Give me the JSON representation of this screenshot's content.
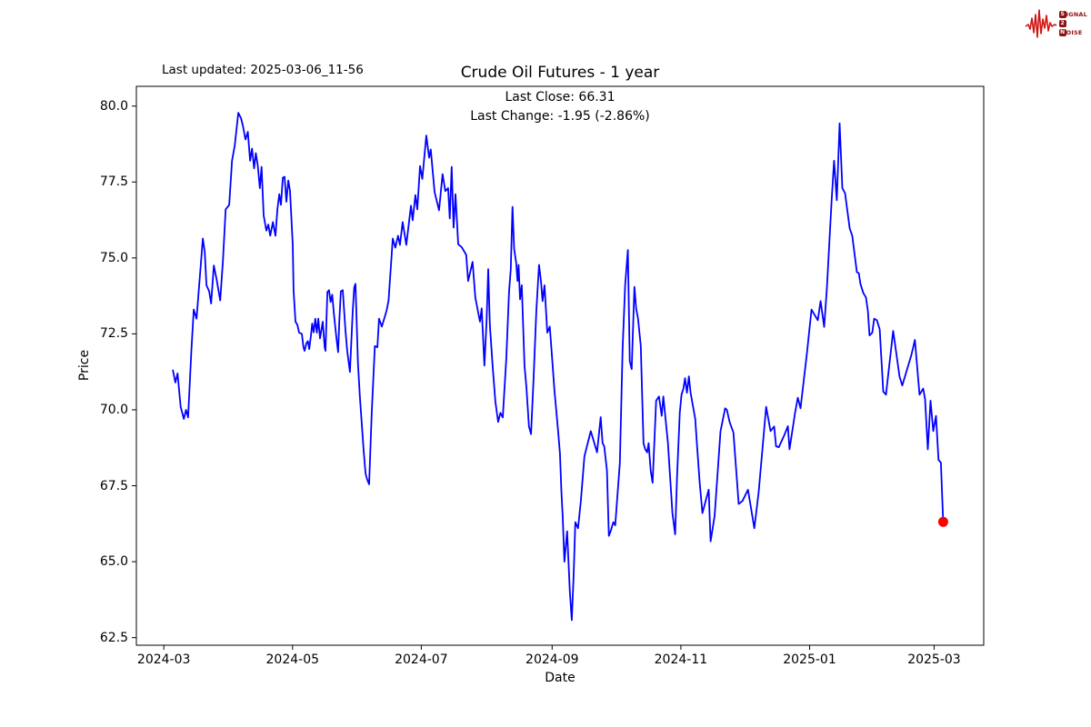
{
  "header": {
    "last_updated": "Last updated: 2025-03-06_11-56"
  },
  "logo": {
    "line1_boxed": "S",
    "line1_rest": "IGNAL",
    "line2_boxed": "2",
    "line2_rest": "",
    "line3_boxed": "N",
    "line3_rest": "OISE",
    "waveform_color": "#cf1511",
    "box_color": "#8c1210",
    "text_color": "#8c1210"
  },
  "chart_data": {
    "type": "line",
    "title": "Crude Oil Futures - 1 year",
    "annotation_line1": "Last Close: 66.31",
    "annotation_line2": "Last Change: -1.95 (-2.86%)",
    "last_close": 66.31,
    "last_change": -1.95,
    "last_change_pct": -2.86,
    "xlabel": "Date",
    "ylabel": "Price",
    "grid": false,
    "legend": "none",
    "line_color": "#0000ff",
    "marker_color": "#ff0000",
    "x_unit": "days since 2024-03-01",
    "xlim": [
      -13,
      388.5
    ],
    "ylim": [
      62.25,
      80.65
    ],
    "y_ticks": [
      62.5,
      65.0,
      67.5,
      70.0,
      72.5,
      75.0,
      77.5,
      80.0
    ],
    "x_ticks": [
      {
        "day": 0,
        "label": "2024-03"
      },
      {
        "day": 61,
        "label": "2024-05"
      },
      {
        "day": 122,
        "label": "2024-07"
      },
      {
        "day": 184,
        "label": "2024-09"
      },
      {
        "day": 245,
        "label": "2024-11"
      },
      {
        "day": 306,
        "label": "2025-01"
      },
      {
        "day": 365,
        "label": "2025-03"
      }
    ],
    "series": [
      {
        "name": "Price",
        "points": [
          [
            4.3,
            71.3
          ],
          [
            5.5,
            70.9
          ],
          [
            6.5,
            71.2
          ],
          [
            8,
            70.1
          ],
          [
            9.5,
            69.7
          ],
          [
            10.5,
            70.0
          ],
          [
            11.5,
            69.75
          ],
          [
            13,
            71.9
          ],
          [
            14.2,
            73.3
          ],
          [
            15.5,
            73.0
          ],
          [
            17,
            74.3
          ],
          [
            18.5,
            75.64
          ],
          [
            19.4,
            75.2
          ],
          [
            20.2,
            74.1
          ],
          [
            21.5,
            73.9
          ],
          [
            22.4,
            73.5
          ],
          [
            23.7,
            74.75
          ],
          [
            25,
            74.3
          ],
          [
            26.7,
            73.6
          ],
          [
            28,
            74.9
          ],
          [
            29.3,
            76.6
          ],
          [
            31,
            76.75
          ],
          [
            32.3,
            78.2
          ],
          [
            33.6,
            78.7
          ],
          [
            35.3,
            79.78
          ],
          [
            36.6,
            79.6
          ],
          [
            37.5,
            79.35
          ],
          [
            38.7,
            78.9
          ],
          [
            39.8,
            79.15
          ],
          [
            40.9,
            78.2
          ],
          [
            41.8,
            78.6
          ],
          [
            42.8,
            77.95
          ],
          [
            43.6,
            78.45
          ],
          [
            44.5,
            78.05
          ],
          [
            45.5,
            77.3
          ],
          [
            46.3,
            78.0
          ],
          [
            47.3,
            76.4
          ],
          [
            48.6,
            75.9
          ],
          [
            49.5,
            76.1
          ],
          [
            50.4,
            75.73
          ],
          [
            51.7,
            76.18
          ],
          [
            52.9,
            75.73
          ],
          [
            53.8,
            76.6
          ],
          [
            54.7,
            77.1
          ],
          [
            55.5,
            76.75
          ],
          [
            56.4,
            77.64
          ],
          [
            57.2,
            77.67
          ],
          [
            58.1,
            76.85
          ],
          [
            59,
            77.55
          ],
          [
            59.8,
            77.2
          ],
          [
            61.1,
            75.43
          ],
          [
            61.5,
            73.94
          ],
          [
            62.4,
            72.9
          ],
          [
            63.3,
            72.8
          ],
          [
            64.1,
            72.54
          ],
          [
            65.4,
            72.5
          ],
          [
            66.2,
            72.06
          ],
          [
            66.7,
            71.94
          ],
          [
            67.6,
            72.2
          ],
          [
            68.3,
            72.26
          ],
          [
            68.9,
            72.0
          ],
          [
            69.7,
            72.44
          ],
          [
            70.3,
            72.84
          ],
          [
            71,
            72.55
          ],
          [
            71.8,
            73.0
          ],
          [
            72.5,
            72.54
          ],
          [
            73.2,
            73.0
          ],
          [
            74,
            72.35
          ],
          [
            75.3,
            72.9
          ],
          [
            76.2,
            72.06
          ],
          [
            76.6,
            71.94
          ],
          [
            77.5,
            73.88
          ],
          [
            78.3,
            73.94
          ],
          [
            79,
            73.55
          ],
          [
            79.8,
            73.79
          ],
          [
            80.6,
            73.15
          ],
          [
            81.8,
            72.35
          ],
          [
            82.6,
            71.9
          ],
          [
            83.1,
            72.85
          ],
          [
            83.9,
            73.9
          ],
          [
            84.8,
            73.94
          ],
          [
            86.1,
            72.6
          ],
          [
            86.9,
            71.94
          ],
          [
            88.2,
            71.25
          ],
          [
            89.5,
            73.2
          ],
          [
            90.2,
            74.03
          ],
          [
            90.8,
            74.15
          ],
          [
            92,
            71.55
          ],
          [
            92.9,
            70.45
          ],
          [
            93.8,
            69.55
          ],
          [
            94.7,
            68.65
          ],
          [
            95.6,
            67.9
          ],
          [
            96.4,
            67.7
          ],
          [
            97.3,
            67.55
          ],
          [
            98.5,
            69.85
          ],
          [
            100,
            72.1
          ],
          [
            101.2,
            72.06
          ],
          [
            102,
            73.0
          ],
          [
            103.3,
            72.74
          ],
          [
            105.5,
            73.25
          ],
          [
            106.5,
            73.6
          ],
          [
            108.5,
            75.64
          ],
          [
            109.7,
            75.34
          ],
          [
            111,
            75.73
          ],
          [
            111.9,
            75.43
          ],
          [
            113.2,
            76.18
          ],
          [
            114.9,
            75.43
          ],
          [
            117.1,
            76.72
          ],
          [
            117.9,
            76.24
          ],
          [
            119.2,
            77.07
          ],
          [
            120.1,
            76.6
          ],
          [
            121.4,
            78.03
          ],
          [
            122.5,
            77.6
          ],
          [
            124.4,
            79.03
          ],
          [
            125.7,
            78.3
          ],
          [
            126.5,
            78.57
          ],
          [
            128.3,
            77.17
          ],
          [
            130.4,
            76.57
          ],
          [
            132.1,
            77.76
          ],
          [
            133.4,
            77.2
          ],
          [
            134.7,
            77.3
          ],
          [
            135.5,
            76.3
          ],
          [
            136.4,
            78.0
          ],
          [
            137.3,
            76.0
          ],
          [
            138.2,
            77.1
          ],
          [
            139.5,
            75.45
          ],
          [
            141.2,
            75.35
          ],
          [
            143.3,
            75.1
          ],
          [
            144.2,
            74.24
          ],
          [
            146.3,
            74.87
          ],
          [
            147.6,
            73.7
          ],
          [
            149.8,
            72.9
          ],
          [
            150.6,
            73.34
          ],
          [
            151.9,
            71.46
          ],
          [
            153,
            73.0
          ],
          [
            153.7,
            74.63
          ],
          [
            154.5,
            72.8
          ],
          [
            155.8,
            71.46
          ],
          [
            157.1,
            70.26
          ],
          [
            158.4,
            69.6
          ],
          [
            159.5,
            69.9
          ],
          [
            160.6,
            69.75
          ],
          [
            162.3,
            71.7
          ],
          [
            163.6,
            73.88
          ],
          [
            164.4,
            74.63
          ],
          [
            165.2,
            76.68
          ],
          [
            166,
            75.3
          ],
          [
            167,
            74.83
          ],
          [
            167.6,
            74.24
          ],
          [
            168.1,
            74.77
          ],
          [
            168.8,
            73.64
          ],
          [
            169.6,
            74.1
          ],
          [
            170.9,
            71.46
          ],
          [
            171.8,
            70.75
          ],
          [
            173,
            69.45
          ],
          [
            174,
            69.2
          ],
          [
            175.2,
            71.04
          ],
          [
            176.5,
            73.25
          ],
          [
            177.8,
            74.77
          ],
          [
            178.7,
            74.24
          ],
          [
            179.5,
            73.58
          ],
          [
            180.4,
            74.1
          ],
          [
            181.7,
            72.54
          ],
          [
            182.9,
            72.74
          ],
          [
            183.8,
            71.9
          ],
          [
            185.1,
            70.65
          ],
          [
            186,
            69.96
          ],
          [
            186.9,
            69.25
          ],
          [
            187.7,
            68.56
          ],
          [
            188.4,
            67.3
          ],
          [
            189,
            66.5
          ],
          [
            189.8,
            65.0
          ],
          [
            191.1,
            66.0
          ],
          [
            192.4,
            64.0
          ],
          [
            193.3,
            63.08
          ],
          [
            194.2,
            64.6
          ],
          [
            195,
            66.3
          ],
          [
            196.3,
            66.1
          ],
          [
            197.6,
            67.0
          ],
          [
            199.3,
            68.47
          ],
          [
            202.3,
            69.3
          ],
          [
            205.3,
            68.6
          ],
          [
            207,
            69.76
          ],
          [
            207.9,
            68.9
          ],
          [
            208.7,
            68.8
          ],
          [
            210,
            68.0
          ],
          [
            210.9,
            65.85
          ],
          [
            211.7,
            66.0
          ],
          [
            213,
            66.3
          ],
          [
            213.9,
            66.2
          ],
          [
            216.1,
            68.26
          ],
          [
            217.4,
            72.0
          ],
          [
            218.6,
            74.1
          ],
          [
            219.9,
            75.26
          ],
          [
            220.8,
            71.6
          ],
          [
            221.7,
            71.34
          ],
          [
            223,
            74.05
          ],
          [
            223.8,
            73.34
          ],
          [
            224.7,
            73.0
          ],
          [
            226,
            72.1
          ],
          [
            227.3,
            68.9
          ],
          [
            228.1,
            68.7
          ],
          [
            229,
            68.6
          ],
          [
            229.7,
            68.9
          ],
          [
            230.7,
            68.0
          ],
          [
            231.6,
            67.6
          ],
          [
            233.3,
            70.3
          ],
          [
            234.6,
            70.44
          ],
          [
            235.9,
            69.8
          ],
          [
            236.7,
            70.44
          ],
          [
            238.9,
            68.9
          ],
          [
            239.7,
            68.0
          ],
          [
            241,
            66.6
          ],
          [
            242.3,
            65.9
          ],
          [
            243.2,
            67.8
          ],
          [
            244.5,
            69.9
          ],
          [
            245.3,
            70.5
          ],
          [
            246.2,
            70.7
          ],
          [
            247,
            71.04
          ],
          [
            247.9,
            70.56
          ],
          [
            248.8,
            71.1
          ],
          [
            249.6,
            70.56
          ],
          [
            251.8,
            69.7
          ],
          [
            252.6,
            68.9
          ],
          [
            253.9,
            67.6
          ],
          [
            255.2,
            66.6
          ],
          [
            258.2,
            67.37
          ],
          [
            259.1,
            65.67
          ],
          [
            261,
            66.5
          ],
          [
            262.5,
            68.0
          ],
          [
            263.8,
            69.3
          ],
          [
            266,
            70.05
          ],
          [
            266.8,
            70.0
          ],
          [
            268.1,
            69.6
          ],
          [
            269.9,
            69.25
          ],
          [
            272.4,
            66.9
          ],
          [
            274.2,
            67.0
          ],
          [
            276.8,
            67.37
          ],
          [
            279.8,
            66.1
          ],
          [
            281.9,
            67.3
          ],
          [
            285.4,
            70.1
          ],
          [
            287.5,
            69.3
          ],
          [
            289.2,
            69.45
          ],
          [
            290.1,
            68.8
          ],
          [
            291.4,
            68.77
          ],
          [
            294,
            69.16
          ],
          [
            295.7,
            69.46
          ],
          [
            296.5,
            68.7
          ],
          [
            299.1,
            69.9
          ],
          [
            300.4,
            70.4
          ],
          [
            301.7,
            70.05
          ],
          [
            304.7,
            71.85
          ],
          [
            306.9,
            73.3
          ],
          [
            309.9,
            72.95
          ],
          [
            311.2,
            73.58
          ],
          [
            312.9,
            72.73
          ],
          [
            314.2,
            74.0
          ],
          [
            316.4,
            76.83
          ],
          [
            317.6,
            78.2
          ],
          [
            318.9,
            76.9
          ],
          [
            320.2,
            79.43
          ],
          [
            321.5,
            77.3
          ],
          [
            322.8,
            77.13
          ],
          [
            325,
            75.97
          ],
          [
            326.2,
            75.73
          ],
          [
            328.4,
            74.53
          ],
          [
            329.3,
            74.5
          ],
          [
            330.1,
            74.15
          ],
          [
            331.4,
            73.85
          ],
          [
            332.7,
            73.7
          ],
          [
            333.6,
            73.25
          ],
          [
            334.4,
            72.45
          ],
          [
            335.7,
            72.54
          ],
          [
            336.6,
            73.0
          ],
          [
            337.9,
            72.95
          ],
          [
            339.2,
            72.65
          ],
          [
            340.9,
            70.6
          ],
          [
            342.2,
            70.5
          ],
          [
            345.6,
            72.6
          ],
          [
            348.6,
            71.1
          ],
          [
            349.9,
            70.8
          ],
          [
            354.2,
            71.8
          ],
          [
            355.9,
            72.3
          ],
          [
            358.1,
            70.5
          ],
          [
            359.8,
            70.7
          ],
          [
            360.7,
            70.35
          ],
          [
            362,
            68.7
          ],
          [
            363.3,
            70.3
          ],
          [
            364.6,
            69.3
          ],
          [
            365.9,
            69.8
          ],
          [
            367.1,
            68.35
          ],
          [
            368.2,
            68.26
          ],
          [
            369.3,
            66.31
          ]
        ]
      }
    ]
  }
}
